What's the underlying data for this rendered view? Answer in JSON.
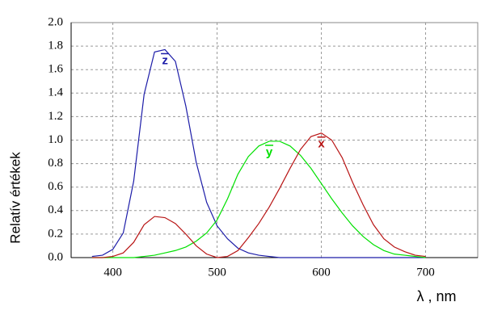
{
  "chart_data": {
    "type": "line",
    "x_label": "λ ,  nm",
    "y_label": "Relatív értékek",
    "x": [
      380,
      390,
      400,
      410,
      420,
      430,
      440,
      450,
      460,
      470,
      480,
      490,
      500,
      510,
      520,
      530,
      540,
      550,
      560,
      570,
      580,
      590,
      600,
      610,
      620,
      630,
      640,
      650,
      660,
      670,
      680,
      690,
      700
    ],
    "series": [
      {
        "name": "z",
        "color": "#1c1ca8",
        "values": [
          0.01,
          0.02,
          0.07,
          0.21,
          0.65,
          1.39,
          1.75,
          1.77,
          1.67,
          1.29,
          0.81,
          0.47,
          0.27,
          0.16,
          0.08,
          0.04,
          0.02,
          0.01,
          0,
          0,
          0,
          0,
          0,
          0,
          0,
          0,
          0,
          0,
          0,
          0,
          0,
          0,
          0
        ]
      },
      {
        "name": "y",
        "color": "#00e000",
        "values": [
          0,
          0,
          0,
          0,
          0,
          0.01,
          0.02,
          0.04,
          0.06,
          0.09,
          0.14,
          0.21,
          0.32,
          0.5,
          0.71,
          0.86,
          0.95,
          0.99,
          0.99,
          0.95,
          0.87,
          0.76,
          0.63,
          0.5,
          0.38,
          0.27,
          0.18,
          0.11,
          0.06,
          0.03,
          0.02,
          0.01,
          0
        ]
      },
      {
        "name": "x",
        "color": "#b81414",
        "values": [
          0,
          0,
          0.01,
          0.04,
          0.13,
          0.28,
          0.35,
          0.34,
          0.29,
          0.2,
          0.1,
          0.03,
          0,
          0.01,
          0.06,
          0.17,
          0.29,
          0.43,
          0.59,
          0.76,
          0.92,
          1.03,
          1.06,
          1,
          0.85,
          0.64,
          0.45,
          0.28,
          0.16,
          0.09,
          0.05,
          0.02,
          0.01
        ]
      }
    ],
    "xlim": [
      360,
      750
    ],
    "xticks": [
      400,
      500,
      600,
      700
    ],
    "ylim": [
      0,
      2
    ],
    "yticks": [
      {
        "value": 0,
        "label": "0.0"
      },
      0.2,
      0.4,
      0.6,
      0.8,
      {
        "value": 1,
        "label": "1.0"
      },
      1.2,
      1.4,
      1.6,
      1.8,
      {
        "value": 2,
        "label": "2.0"
      }
    ],
    "grid": true
  }
}
